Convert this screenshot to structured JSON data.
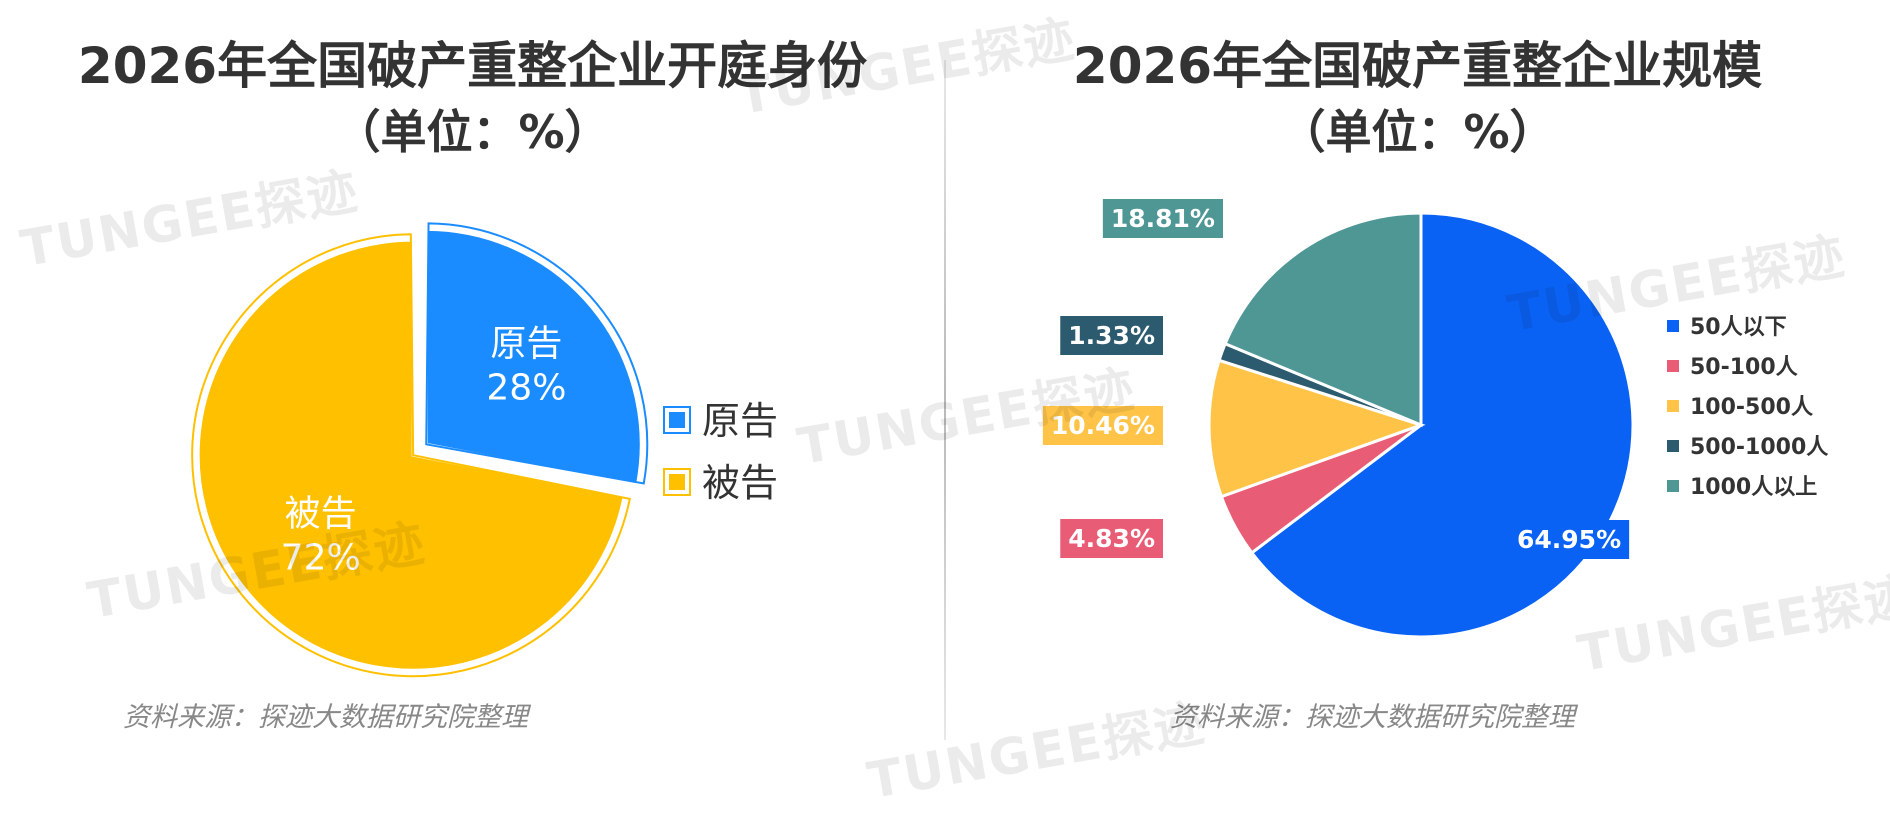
{
  "watermark": "TUNGEE探迹",
  "left": {
    "title_line1": "2026年全国破产重整企业开庭身份",
    "title_line2": "（单位：%）",
    "source": "资料来源：探迹大数据研究院整理"
  },
  "right": {
    "title_line1": "2026年全国破产重整企业规模",
    "title_line2": "（单位：%）",
    "source": "资料来源：探迹大数据研究院整理"
  },
  "colors": {
    "plaintiff": "#1a8cff",
    "defendant": "#ffc000",
    "s1": "#0a62f5",
    "s2": "#e85d75",
    "s3": "#ffc447",
    "s4": "#2c5a6e",
    "s5": "#4f9795"
  },
  "chart_data": [
    {
      "type": "pie",
      "title": "2026年全国破产重整企业开庭身份",
      "subtitle": "（单位：%）",
      "legend_position": "right",
      "slices": [
        {
          "label": "原告",
          "value": 28,
          "value_label": "28%"
        },
        {
          "label": "被告",
          "value": 72,
          "value_label": "72%"
        }
      ]
    },
    {
      "type": "pie",
      "title": "2026年全国破产重整企业规模",
      "subtitle": "（单位：%）",
      "legend_position": "right",
      "slices": [
        {
          "label": "50人以下",
          "value": 64.95,
          "value_label": "64.95%"
        },
        {
          "label": "50-100人",
          "value": 4.83,
          "value_label": "4.83%"
        },
        {
          "label": "100-500人",
          "value": 10.46,
          "value_label": "10.46%"
        },
        {
          "label": "500-1000人",
          "value": 1.33,
          "value_label": "1.33%"
        },
        {
          "label": "1000人以上",
          "value": 18.81,
          "value_label": "18.81%"
        }
      ]
    }
  ]
}
